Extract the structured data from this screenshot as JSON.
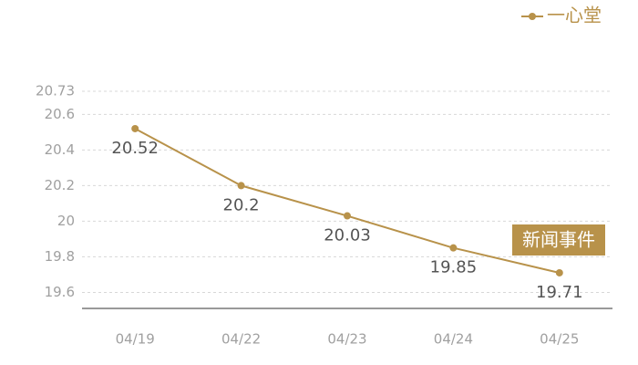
{
  "chart_data": {
    "type": "line",
    "categories": [
      "04/19",
      "04/22",
      "04/23",
      "04/24",
      "04/25"
    ],
    "series": [
      {
        "name": "一心堂",
        "color": "#b8924a",
        "values": [
          20.52,
          20.2,
          20.03,
          19.85,
          19.71
        ]
      }
    ],
    "ylim": [
      19.51,
      20.73
    ],
    "yticks": [
      19.6,
      19.8,
      20,
      20.2,
      20.4,
      20.6,
      20.73
    ],
    "grid": true,
    "legend": "top-right",
    "annotation": "新闻事件"
  }
}
